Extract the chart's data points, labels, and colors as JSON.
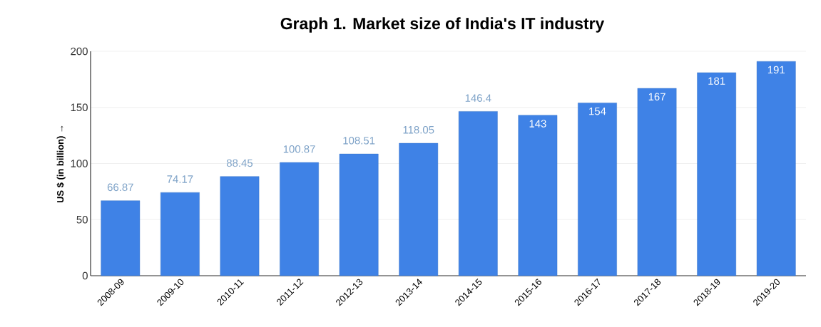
{
  "chart_data": {
    "type": "bar",
    "title": "Graph 1. Market size of India's IT industry",
    "ylabel": "US $ (in billion) →",
    "categories": [
      "2008-09",
      "2009-10",
      "2010-11",
      "2011-12",
      "2012-13",
      "2013-14",
      "2014-15",
      "2015-16",
      "2016-17",
      "2017-18",
      "2018-19",
      "2019-20"
    ],
    "values": [
      66.87,
      74.17,
      88.45,
      100.87,
      108.51,
      118.05,
      146.4,
      143,
      154,
      167,
      181,
      191
    ],
    "color": "#3f82e6",
    "ylim": [
      0,
      200
    ],
    "yticks": [
      0,
      50,
      100,
      150,
      200
    ],
    "grid": "y",
    "data_labels": true
  }
}
